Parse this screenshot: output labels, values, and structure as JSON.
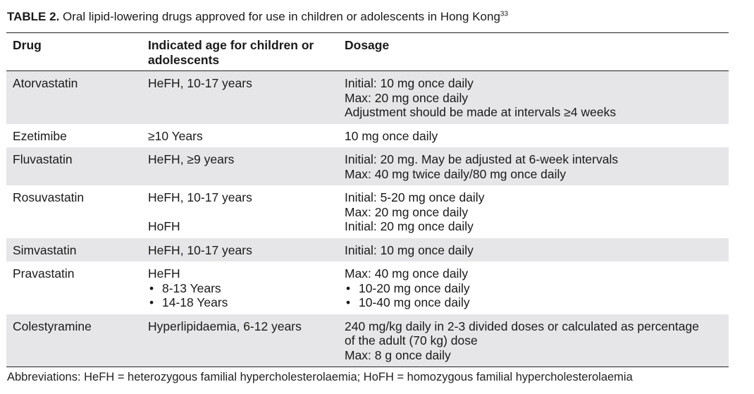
{
  "caption": {
    "label": "TABLE 2.",
    "text": "Oral lipid-lowering drugs approved for use in children or adolescents in Hong Kong",
    "ref": "33"
  },
  "table": {
    "headers": {
      "drug": "Drug",
      "age_line1": "Indicated age for children or",
      "age_line2": "adolescents",
      "dosage": "Dosage"
    },
    "rows": [
      {
        "drug": "Atorvastatin",
        "age": "HeFH, 10-17 years",
        "dosage": [
          "Initial: 10 mg once daily",
          "Max: 20 mg once daily",
          "Adjustment should be made at intervals ≥4 weeks"
        ]
      },
      {
        "drug": "Ezetimibe",
        "age": "≥10 Years",
        "dosage": [
          "10 mg once daily"
        ]
      },
      {
        "drug": "Fluvastatin",
        "age": "HeFH, ≥9 years",
        "dosage": [
          "Initial: 20 mg. May be adjusted at 6-week intervals",
          "Max: 40 mg twice daily/80 mg once daily"
        ]
      },
      {
        "drug": "Rosuvastatin",
        "age_a": "HeFH, 10-17 years",
        "age_b": "HoFH",
        "dosage": [
          "Initial: 5-20 mg once daily",
          "Max: 20 mg once daily",
          "Initial: 20 mg once daily"
        ]
      },
      {
        "drug": "Simvastatin",
        "age": "HeFH, 10-17 years",
        "dosage": [
          "Initial: 10 mg once daily"
        ]
      },
      {
        "drug": "Pravastatin",
        "age_head": "HeFH",
        "age_bullets": [
          "8-13 Years",
          "14-18 Years"
        ],
        "dosage_head": "Max: 40 mg once daily",
        "dosage_bullets": [
          "10-20 mg once daily",
          "10-40 mg once daily"
        ]
      },
      {
        "drug": "Colestyramine",
        "age": "Hyperlipidaemia, 6-12 years",
        "dosage": [
          "240 mg/kg daily in 2-3 divided doses or calculated as percentage",
          "of the adult (70 kg) dose",
          "Max: 8 g once daily"
        ]
      }
    ],
    "bullet_char": "•"
  },
  "footnote": "Abbreviations: HeFH = heterozygous familial hypercholesterolaemia; HoFH = homozygous familial hypercholesterolaemia"
}
